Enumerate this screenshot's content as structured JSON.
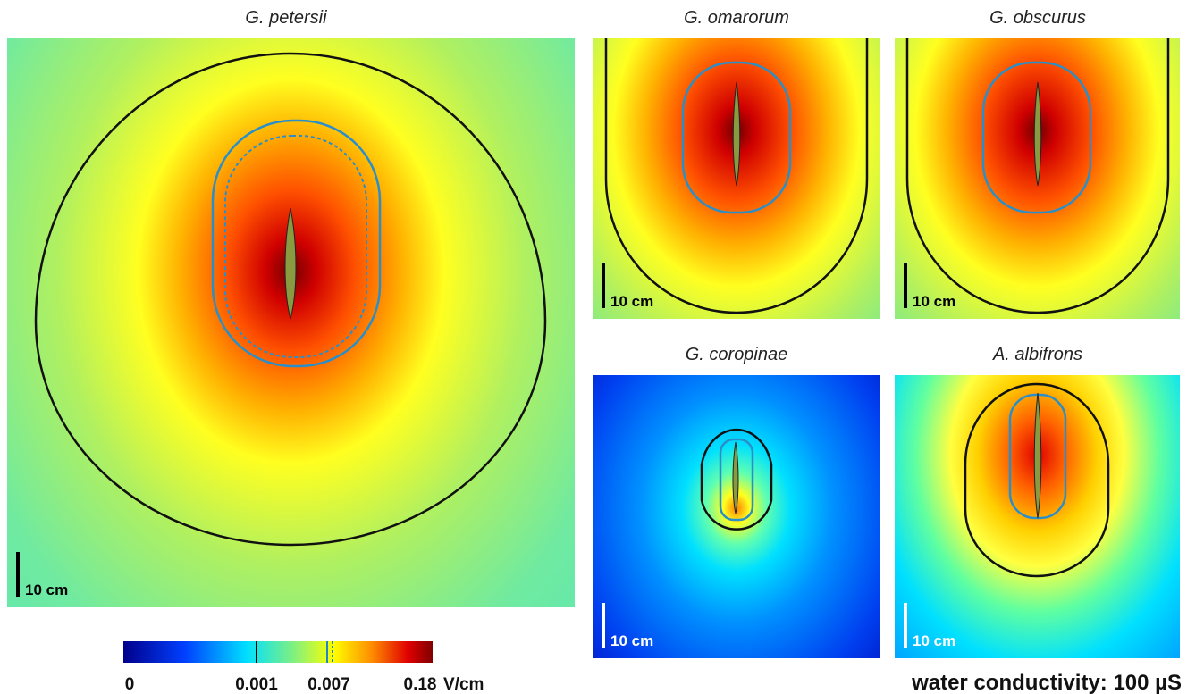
{
  "panels": [
    {
      "title": "G. petersii",
      "scale_label": "10 cm"
    },
    {
      "title": "G. omarorum",
      "scale_label": "10 cm"
    },
    {
      "title": "G. obscurus",
      "scale_label": "10 cm"
    },
    {
      "title": "G. coropinae",
      "scale_label": "10 cm"
    },
    {
      "title": "A. albifrons",
      "scale_label": "10 cm"
    }
  ],
  "colorbar": {
    "labels": [
      "0",
      "0.001",
      "0.007",
      "0.18"
    ],
    "unit": "V/cm"
  },
  "note": "water conductivity: 100 µS"
}
